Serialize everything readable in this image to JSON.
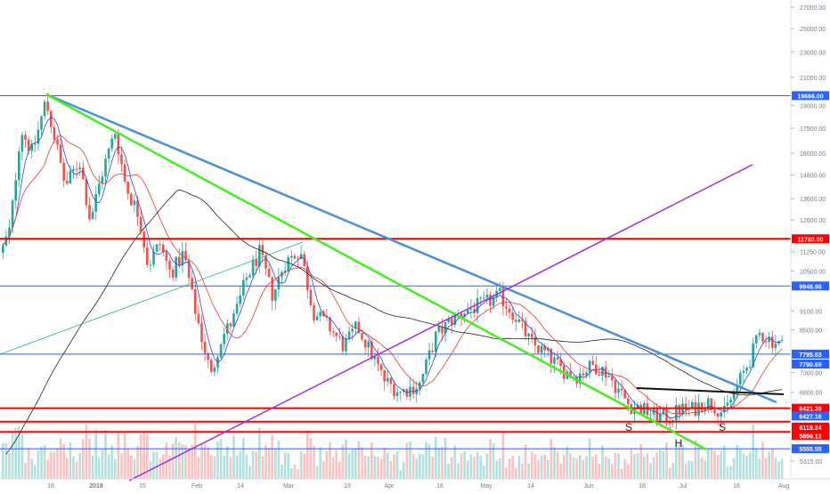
{
  "chart_data": {
    "type": "candlestick",
    "x_labels": [
      "18",
      "2018",
      "15",
      "Feb",
      "14",
      "Mar",
      "19",
      "Apr",
      "16",
      "May",
      "14",
      "Jun",
      "18",
      "Jul",
      "16",
      "Aug"
    ],
    "y_axis": {
      "scale": "log",
      "tick_labels": [
        "27000.00",
        "25000.00",
        "23000.00",
        "21000.00",
        "19000.00",
        "17500.00",
        "16000.00",
        "14800.00",
        "13600.00",
        "12600.00",
        "11250.00",
        "10500.00",
        "9100.00",
        "8500.00",
        "7300.00",
        "6800.00",
        "5315.00"
      ]
    },
    "price_tags": [
      {
        "value": "19666.00",
        "color": "#2962ff"
      },
      {
        "value": "11780.00",
        "color": "#ff0000"
      },
      {
        "value": "9948.98",
        "color": "#2962ff"
      },
      {
        "value": "7795.03",
        "color": "#2962ff"
      },
      {
        "value": "7790.69",
        "color": "#2962ff"
      },
      {
        "value": "6421.39",
        "color": "#ff0000"
      },
      {
        "value": "6427.16",
        "color": "#2962ff"
      },
      {
        "value": "6119.24",
        "color": "#ff0000"
      },
      {
        "value": "5899.12",
        "color": "#ff0000"
      },
      {
        "value": "5555.55",
        "color": "#2962ff"
      }
    ],
    "annotations": [
      "S",
      "H",
      "S"
    ],
    "colors": {
      "up": "#26a69a",
      "down": "#ef5350",
      "ma_fast": "#3344cc",
      "ma_mid": "#e53935",
      "ma_slow": "#222222"
    }
  }
}
